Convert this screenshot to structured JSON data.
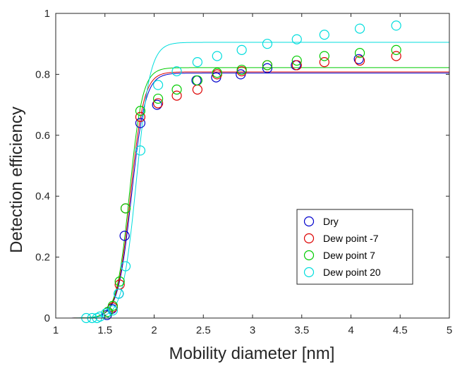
{
  "chart_data": {
    "type": "scatter",
    "title": "",
    "xlabel": "Mobility diameter [nm]",
    "ylabel": "Detection efficiency",
    "xlim": [
      1,
      5
    ],
    "ylim": [
      0,
      1
    ],
    "xticks": [
      1,
      1.5,
      2,
      2.5,
      3,
      3.5,
      4,
      4.5,
      5
    ],
    "yticks": [
      0,
      0.2,
      0.4,
      0.6,
      0.8,
      1
    ],
    "xtick_labels": [
      "1",
      "1.5",
      "2",
      "2.5",
      "3",
      "3.5",
      "4",
      "4.5",
      "5"
    ],
    "ytick_labels": [
      "0",
      "0.2",
      "0.4",
      "0.6",
      "0.8",
      "1"
    ],
    "grid": false,
    "legend_position": "bottom-right",
    "series": [
      {
        "name": "Dry",
        "color": "#0000cc",
        "x": [
          1.52,
          1.57,
          1.64,
          1.7,
          1.86,
          2.03,
          2.43,
          2.63,
          2.88,
          3.15,
          3.44,
          4.08
        ],
        "y": [
          0.01,
          0.03,
          0.08,
          0.27,
          0.64,
          0.7,
          0.78,
          0.79,
          0.8,
          0.82,
          0.83,
          0.85
        ],
        "fit": {
          "asymptote": 0.804,
          "d50": 1.77,
          "width": 0.07
        }
      },
      {
        "name": "Dew point -7",
        "color": "#dd0000",
        "x": [
          1.53,
          1.58,
          1.65,
          1.71,
          1.86,
          2.04,
          2.23,
          2.44,
          2.64,
          2.89,
          3.15,
          3.45,
          3.73,
          4.09,
          4.46
        ],
        "y": [
          0.02,
          0.035,
          0.11,
          0.36,
          0.66,
          0.705,
          0.73,
          0.75,
          0.8,
          0.81,
          0.83,
          0.83,
          0.84,
          0.845,
          0.86
        ],
        "fit": {
          "asymptote": 0.808,
          "d50": 1.76,
          "width": 0.068
        }
      },
      {
        "name": "Dew point 7",
        "color": "#00cc00",
        "x": [
          1.53,
          1.58,
          1.65,
          1.71,
          1.86,
          2.04,
          2.23,
          2.44,
          2.64,
          2.89,
          3.15,
          3.45,
          3.73,
          4.09,
          4.46
        ],
        "y": [
          0.02,
          0.04,
          0.12,
          0.36,
          0.68,
          0.72,
          0.75,
          0.78,
          0.805,
          0.815,
          0.83,
          0.845,
          0.86,
          0.87,
          0.88
        ],
        "fit": {
          "asymptote": 0.822,
          "d50": 1.75,
          "width": 0.066
        }
      },
      {
        "name": "Dew point 20",
        "color": "#00dddd",
        "x": [
          1.31,
          1.37,
          1.42,
          1.45,
          1.51,
          1.58,
          1.64,
          1.71,
          1.86,
          2.04,
          2.23,
          2.44,
          2.64,
          2.89,
          3.15,
          3.45,
          3.73,
          4.09,
          4.46
        ],
        "y": [
          0.0,
          0.0,
          0.0,
          0.005,
          0.015,
          0.025,
          0.08,
          0.17,
          0.55,
          0.765,
          0.81,
          0.84,
          0.86,
          0.88,
          0.9,
          0.915,
          0.93,
          0.95,
          0.96
        ],
        "fit": {
          "asymptote": 0.905,
          "d50": 1.82,
          "width": 0.07
        }
      }
    ]
  }
}
